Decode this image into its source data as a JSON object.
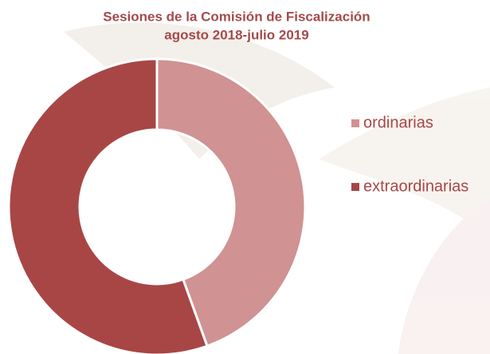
{
  "chart_data": {
    "type": "donut",
    "title": "Sesiones de la Comisión de Fiscalización",
    "subtitle": "agosto 2018-julio 2019",
    "series": [
      {
        "name": "ordinarias",
        "color": "#d09292",
        "values": [
          44.5
        ]
      },
      {
        "name": "extraordinarias",
        "color": "#a84646",
        "values": [
          55.5
        ]
      }
    ],
    "legend": "right"
  }
}
